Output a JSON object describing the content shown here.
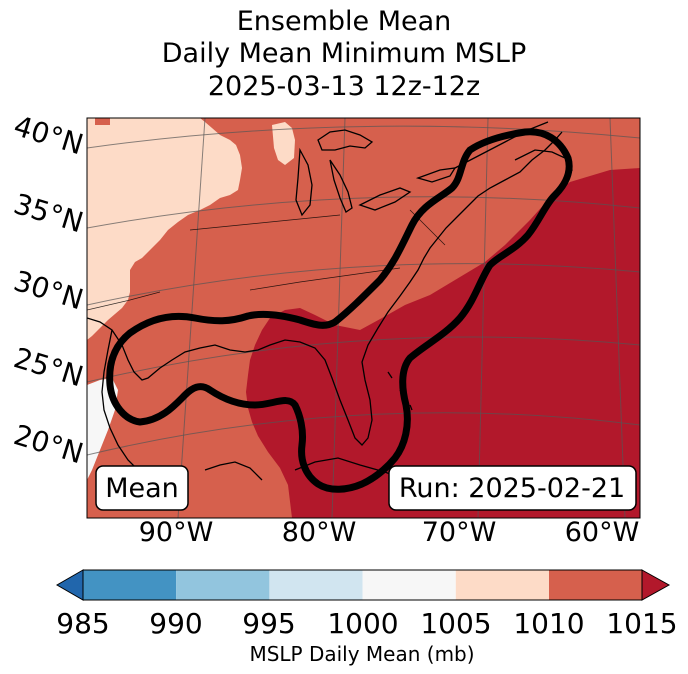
{
  "title": {
    "line1": "Ensemble Mean",
    "line2": "Daily Mean Minimum MSLP",
    "line3": "2025-03-13 12z-12z"
  },
  "map": {
    "lat_labels": [
      "40°N",
      "35°N",
      "30°N",
      "25°N",
      "20°N"
    ],
    "lon_labels": [
      "90°W",
      "80°W",
      "70°W",
      "60°W"
    ],
    "mean_label": "Mean",
    "run_label": "Run: 2025-02-21",
    "contour_color": "#000000",
    "fill_colors": {
      "1000-1005": "#f7f7f7",
      "1005-1010": "#fddbc7",
      "1010-1015": "#d6604d",
      ">1015": "#b2182b"
    }
  },
  "colorbar": {
    "label": "MSLP Daily Mean (mb)",
    "ticks": [
      "985",
      "990",
      "995",
      "1000",
      "1005",
      "1010",
      "1015"
    ],
    "under_color": "#2166ac",
    "over_color": "#b2182b",
    "colors": [
      "#4393c3",
      "#92c5de",
      "#d1e5f0",
      "#f7f7f7",
      "#fddbc7",
      "#d6604d"
    ]
  }
}
